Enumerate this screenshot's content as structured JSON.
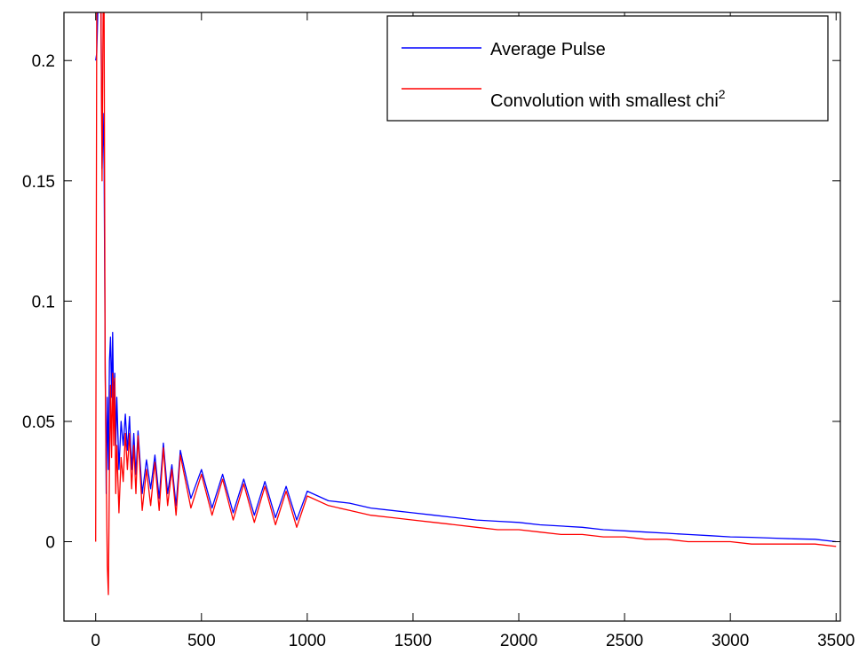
{
  "chart_data": {
    "type": "line",
    "title": "",
    "xlabel": "",
    "ylabel": "",
    "xlim": [
      -150,
      3520
    ],
    "ylim": [
      -0.033,
      0.22
    ],
    "grid": false,
    "legend_position": "top-right",
    "x_ticks": [
      0,
      500,
      1000,
      1500,
      2000,
      2500,
      3000,
      3500
    ],
    "y_ticks": [
      0,
      0.05,
      0.1,
      0.15,
      0.2
    ],
    "x_tick_labels": [
      "0",
      "500",
      "1000",
      "1500",
      "2000",
      "2500",
      "3000",
      "3500"
    ],
    "y_tick_labels": [
      "0",
      "0.05",
      "0.1",
      "0.15",
      "0.2"
    ],
    "legend": [
      {
        "label": "Average Pulse",
        "sup": ""
      },
      {
        "label": "Convolution with smallest chi",
        "sup": "2"
      }
    ],
    "series": [
      {
        "name": "Average Pulse",
        "color": "#0000ff",
        "x": [
          0,
          5,
          10,
          15,
          20,
          25,
          30,
          35,
          40,
          45,
          50,
          55,
          60,
          65,
          70,
          75,
          80,
          85,
          90,
          95,
          100,
          110,
          120,
          130,
          140,
          150,
          160,
          170,
          180,
          190,
          200,
          220,
          240,
          260,
          280,
          300,
          320,
          340,
          360,
          380,
          400,
          450,
          500,
          550,
          600,
          650,
          700,
          750,
          800,
          850,
          900,
          950,
          1000,
          1100,
          1200,
          1300,
          1400,
          1500,
          1600,
          1700,
          1800,
          1900,
          2000,
          2100,
          2200,
          2300,
          2400,
          2500,
          2600,
          2700,
          2800,
          2900,
          3000,
          3100,
          3200,
          3300,
          3400,
          3500
        ],
        "y": [
          0.2,
          0.203,
          0.22,
          0.22,
          0.22,
          0.22,
          0.155,
          0.178,
          0.155,
          0.075,
          0.02,
          0.06,
          0.03,
          0.075,
          0.085,
          0.06,
          0.087,
          0.055,
          0.07,
          0.04,
          0.06,
          0.03,
          0.05,
          0.04,
          0.053,
          0.038,
          0.052,
          0.03,
          0.045,
          0.028,
          0.046,
          0.02,
          0.034,
          0.022,
          0.036,
          0.018,
          0.041,
          0.02,
          0.032,
          0.015,
          0.038,
          0.018,
          0.03,
          0.014,
          0.028,
          0.012,
          0.026,
          0.011,
          0.025,
          0.01,
          0.023,
          0.009,
          0.021,
          0.017,
          0.016,
          0.014,
          0.013,
          0.012,
          0.011,
          0.01,
          0.009,
          0.0085,
          0.008,
          0.007,
          0.0065,
          0.006,
          0.005,
          0.0045,
          0.004,
          0.0035,
          0.003,
          0.0025,
          0.002,
          0.0018,
          0.0015,
          0.0012,
          0.001,
          0.0
        ]
      },
      {
        "name": "Convolution with smallest chi",
        "color": "#ff0000",
        "x": [
          0,
          5,
          10,
          15,
          20,
          25,
          30,
          35,
          40,
          45,
          50,
          55,
          60,
          65,
          70,
          75,
          80,
          85,
          90,
          95,
          100,
          110,
          120,
          130,
          140,
          150,
          160,
          170,
          180,
          190,
          200,
          220,
          240,
          260,
          280,
          300,
          320,
          340,
          360,
          380,
          400,
          450,
          500,
          550,
          600,
          650,
          700,
          750,
          800,
          850,
          900,
          950,
          1000,
          1100,
          1200,
          1300,
          1400,
          1500,
          1600,
          1700,
          1800,
          1900,
          2000,
          2100,
          2200,
          2300,
          2400,
          2500,
          2600,
          2700,
          2800,
          2900,
          3000,
          3100,
          3200,
          3300,
          3400,
          3500
        ],
        "y": [
          0.0,
          0.22,
          0.22,
          0.22,
          0.22,
          0.22,
          0.15,
          0.22,
          0.22,
          0.07,
          0.03,
          -0.01,
          -0.022,
          0.03,
          0.065,
          0.035,
          0.07,
          0.04,
          0.068,
          0.02,
          0.04,
          0.012,
          0.035,
          0.025,
          0.045,
          0.03,
          0.045,
          0.022,
          0.04,
          0.02,
          0.044,
          0.013,
          0.03,
          0.015,
          0.033,
          0.013,
          0.039,
          0.015,
          0.03,
          0.011,
          0.036,
          0.014,
          0.028,
          0.011,
          0.026,
          0.009,
          0.024,
          0.008,
          0.023,
          0.007,
          0.021,
          0.006,
          0.019,
          0.015,
          0.013,
          0.011,
          0.01,
          0.009,
          0.008,
          0.007,
          0.006,
          0.005,
          0.005,
          0.004,
          0.003,
          0.003,
          0.002,
          0.002,
          0.001,
          0.001,
          0.0,
          0.0,
          0.0,
          -0.001,
          -0.001,
          -0.001,
          -0.001,
          -0.002
        ]
      }
    ]
  }
}
